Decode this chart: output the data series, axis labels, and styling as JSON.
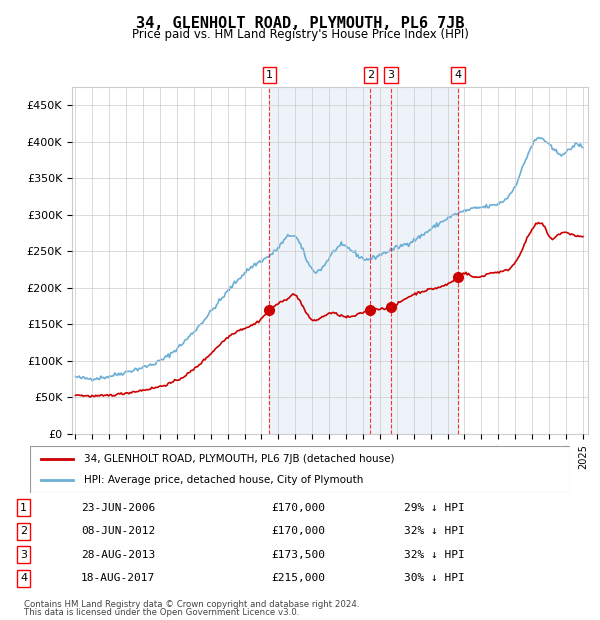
{
  "title": "34, GLENHOLT ROAD, PLYMOUTH, PL6 7JB",
  "subtitle": "Price paid vs. HM Land Registry's House Price Index (HPI)",
  "legend_property": "34, GLENHOLT ROAD, PLYMOUTH, PL6 7JB (detached house)",
  "legend_hpi": "HPI: Average price, detached house, City of Plymouth",
  "footer1": "Contains HM Land Registry data © Crown copyright and database right 2024.",
  "footer2": "This data is licensed under the Open Government Licence v3.0.",
  "hpi_color": "#6baed6",
  "property_color": "#cc0000",
  "background_color": "#dce9f5",
  "transactions": [
    {
      "label": "1",
      "date": "23-JUN-2006",
      "price": 170000,
      "note": "29% ↓ HPI",
      "x_year": 2006.47
    },
    {
      "label": "2",
      "date": "08-JUN-2012",
      "price": 170000,
      "note": "32% ↓ HPI",
      "x_year": 2012.44
    },
    {
      "label": "3",
      "date": "28-AUG-2013",
      "price": 173500,
      "note": "32% ↓ HPI",
      "x_year": 2013.66
    },
    {
      "label": "4",
      "date": "18-AUG-2017",
      "price": 215000,
      "note": "30% ↓ HPI",
      "x_year": 2017.63
    }
  ],
  "ylim": [
    0,
    475000
  ],
  "xlim_start": 1994.8,
  "xlim_end": 2025.3
}
